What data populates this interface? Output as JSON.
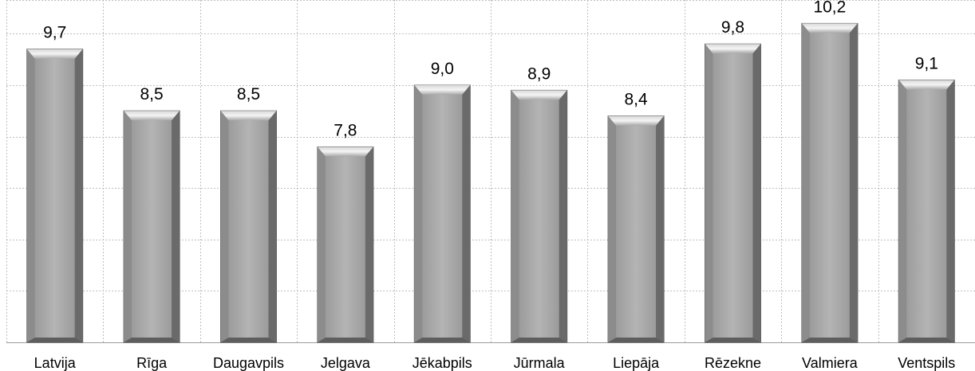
{
  "chart_data": {
    "type": "bar",
    "categories": [
      "Latvija",
      "Rīga",
      "Daugavpils",
      "Jelgava",
      "Jēkabpils",
      "Jūrmala",
      "Liepāja",
      "Rēzekne",
      "Valmiera",
      "Ventspils"
    ],
    "values": [
      9.7,
      8.5,
      8.5,
      7.8,
      9.0,
      8.9,
      8.4,
      9.8,
      10.2,
      9.1
    ],
    "value_labels": [
      "9,7",
      "8,5",
      "8,5",
      "7,8",
      "9,0",
      "8,9",
      "8,4",
      "9,8",
      "10,2",
      "9,1"
    ],
    "title": "",
    "xlabel": "",
    "ylabel": "",
    "ylim": [
      4.0,
      10.5
    ],
    "grid": true,
    "bar_color": "#a6a6a6",
    "grid_color": "#bfbfbf"
  }
}
